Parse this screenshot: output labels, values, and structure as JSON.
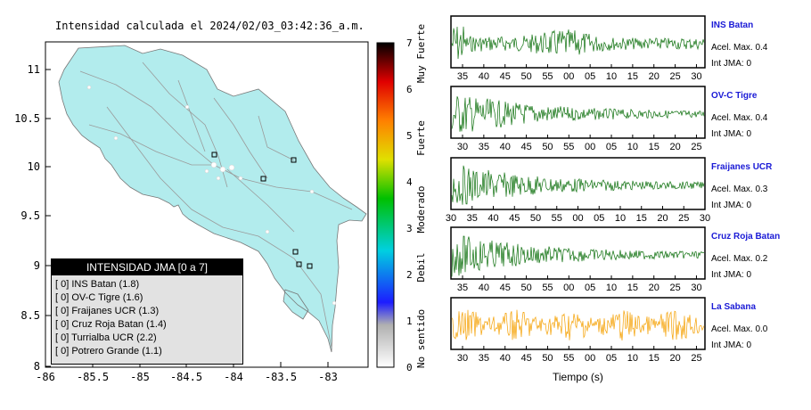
{
  "map": {
    "title": "Intensidad calculada el 2024/02/03_03:42:36_a.m.",
    "x_ticks": [
      "-86",
      "-85.5",
      "-85",
      "-84.5",
      "-84",
      "-83.5",
      "-83"
    ],
    "y_ticks": [
      "11",
      "10.5",
      "10",
      "9.5",
      "9",
      "8.5",
      "8"
    ],
    "land_color": "#b2eced",
    "sea_color": "#ffffff",
    "station_marker": "square"
  },
  "legend": {
    "title": "INTENSIDAD JMA [0 a 7]",
    "rows": [
      "[ 0] INS Batan (1.8)",
      "[ 0] OV-C Tigre (1.6)",
      "[ 0] Fraijanes UCR (1.3)",
      "[ 0] Cruz Roja Batan (1.4)",
      "[ 0] Turrialba UCR (2.2)",
      "[ 0] Potrero Grande (1.1)"
    ]
  },
  "scale": {
    "ticks": [
      "0",
      "1",
      "2",
      "3",
      "4",
      "5",
      "6",
      "7"
    ],
    "labels": [
      "No sentido",
      "Debil",
      "Moderado",
      "Fuerte",
      "Muy Fuerte"
    ]
  },
  "panels": [
    {
      "name": "INS Batan",
      "accel": "Acel. Max. 0.4",
      "jma": "Int JMA: 0",
      "color": "#0a6e0a",
      "ticks": [
        "35",
        "40",
        "45",
        "50",
        "55",
        "00",
        "05",
        "10",
        "15",
        "20",
        "25",
        "30"
      ]
    },
    {
      "name": "OV-C Tigre",
      "accel": "Acel. Max. 0.4",
      "jma": "Int JMA: 0",
      "color": "#0a6e0a",
      "ticks": [
        "30",
        "35",
        "40",
        "45",
        "50",
        "55",
        "00",
        "05",
        "10",
        "15",
        "20",
        "25"
      ]
    },
    {
      "name": "Fraijanes UCR",
      "accel": "Acel. Max. 0.3",
      "jma": "Int JMA: 0",
      "color": "#0a6e0a",
      "ticks": [
        "30",
        "35",
        "40",
        "45",
        "50",
        "55",
        "00",
        "05",
        "10",
        "15",
        "20",
        "25",
        "30"
      ]
    },
    {
      "name": "Cruz Roja Batan",
      "accel": "Acel. Max. 0.2",
      "jma": "Int JMA: 0",
      "color": "#0a6e0a",
      "ticks": [
        "35",
        "40",
        "45",
        "50",
        "55",
        "00",
        "05",
        "10",
        "15",
        "20",
        "25",
        "30"
      ]
    },
    {
      "name": "La Sabana",
      "accel": "Acel. Max. 0.0",
      "jma": "Int JMA: 0",
      "color": "#f5a000",
      "ticks": [
        "30",
        "35",
        "40",
        "45",
        "50",
        "55",
        "00",
        "05",
        "10",
        "15",
        "20",
        "25"
      ]
    }
  ],
  "traces_xlabel": "Tiempo (s)"
}
